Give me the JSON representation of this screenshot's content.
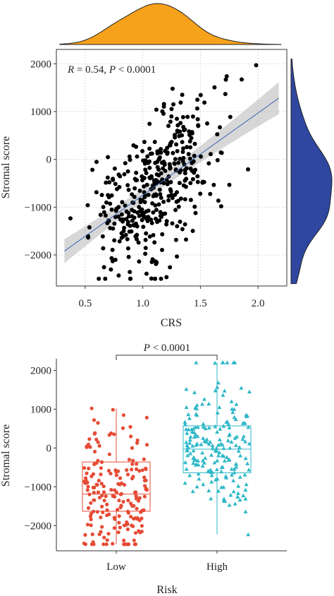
{
  "chart_data": [
    {
      "type": "scatter",
      "annotation": "R = 0.54, P < 0.0001",
      "annotation_parts": {
        "r_label": "R",
        "r_value": " = 0.54, ",
        "p_label": "P",
        "p_value": " < 0.0001"
      },
      "xlabel": "CRS",
      "ylabel": "Stromal score",
      "xlim": [
        0.25,
        2.25
      ],
      "ylim": [
        -2650,
        2300
      ],
      "x_ticks": [
        0.5,
        1.0,
        1.5,
        2.0
      ],
      "x_tick_labels": [
        "0.5",
        "1.0",
        "1.5",
        "2.0"
      ],
      "y_ticks": [
        -2000,
        -1000,
        0,
        1000,
        2000
      ],
      "y_tick_labels": [
        "−2000",
        "−1000",
        "0",
        "1000",
        "2000"
      ],
      "grid": true,
      "regression": {
        "slope": 1720,
        "intercept": -2470,
        "x_range": [
          0.32,
          2.18
        ]
      },
      "marginal_density_x": {
        "color": "#F7A21B"
      },
      "marginal_density_y": {
        "color": "#2F47A0"
      },
      "point_color": "#000000",
      "line_color": "#3D67B4",
      "approx_point_count": 400
    },
    {
      "type": "box",
      "xlabel": "Risk",
      "ylabel": "Stromal score",
      "categories": [
        "Low",
        "High"
      ],
      "colors": [
        "#E64B35",
        "#2EB8C8"
      ],
      "markers": [
        "circle",
        "triangle"
      ],
      "ylim": [
        -2650,
        2300
      ],
      "y_ticks": [
        -2000,
        -1000,
        0,
        1000,
        2000
      ],
      "y_tick_labels": [
        "−2000",
        "−1000",
        "0",
        "1000",
        "2000"
      ],
      "boxes": [
        {
          "name": "Low",
          "whisker_low": -2480,
          "q1": -1630,
          "median": -1190,
          "q3": -360,
          "whisker_high": 1020
        },
        {
          "name": "High",
          "whisker_low": -2230,
          "q1": -640,
          "median": -30,
          "q3": 570,
          "whisker_high": 2200
        }
      ],
      "significance": {
        "label": "P",
        "value": " < 0.0001",
        "text": "P < 0.0001"
      },
      "approx_points_per_group": 200
    }
  ]
}
